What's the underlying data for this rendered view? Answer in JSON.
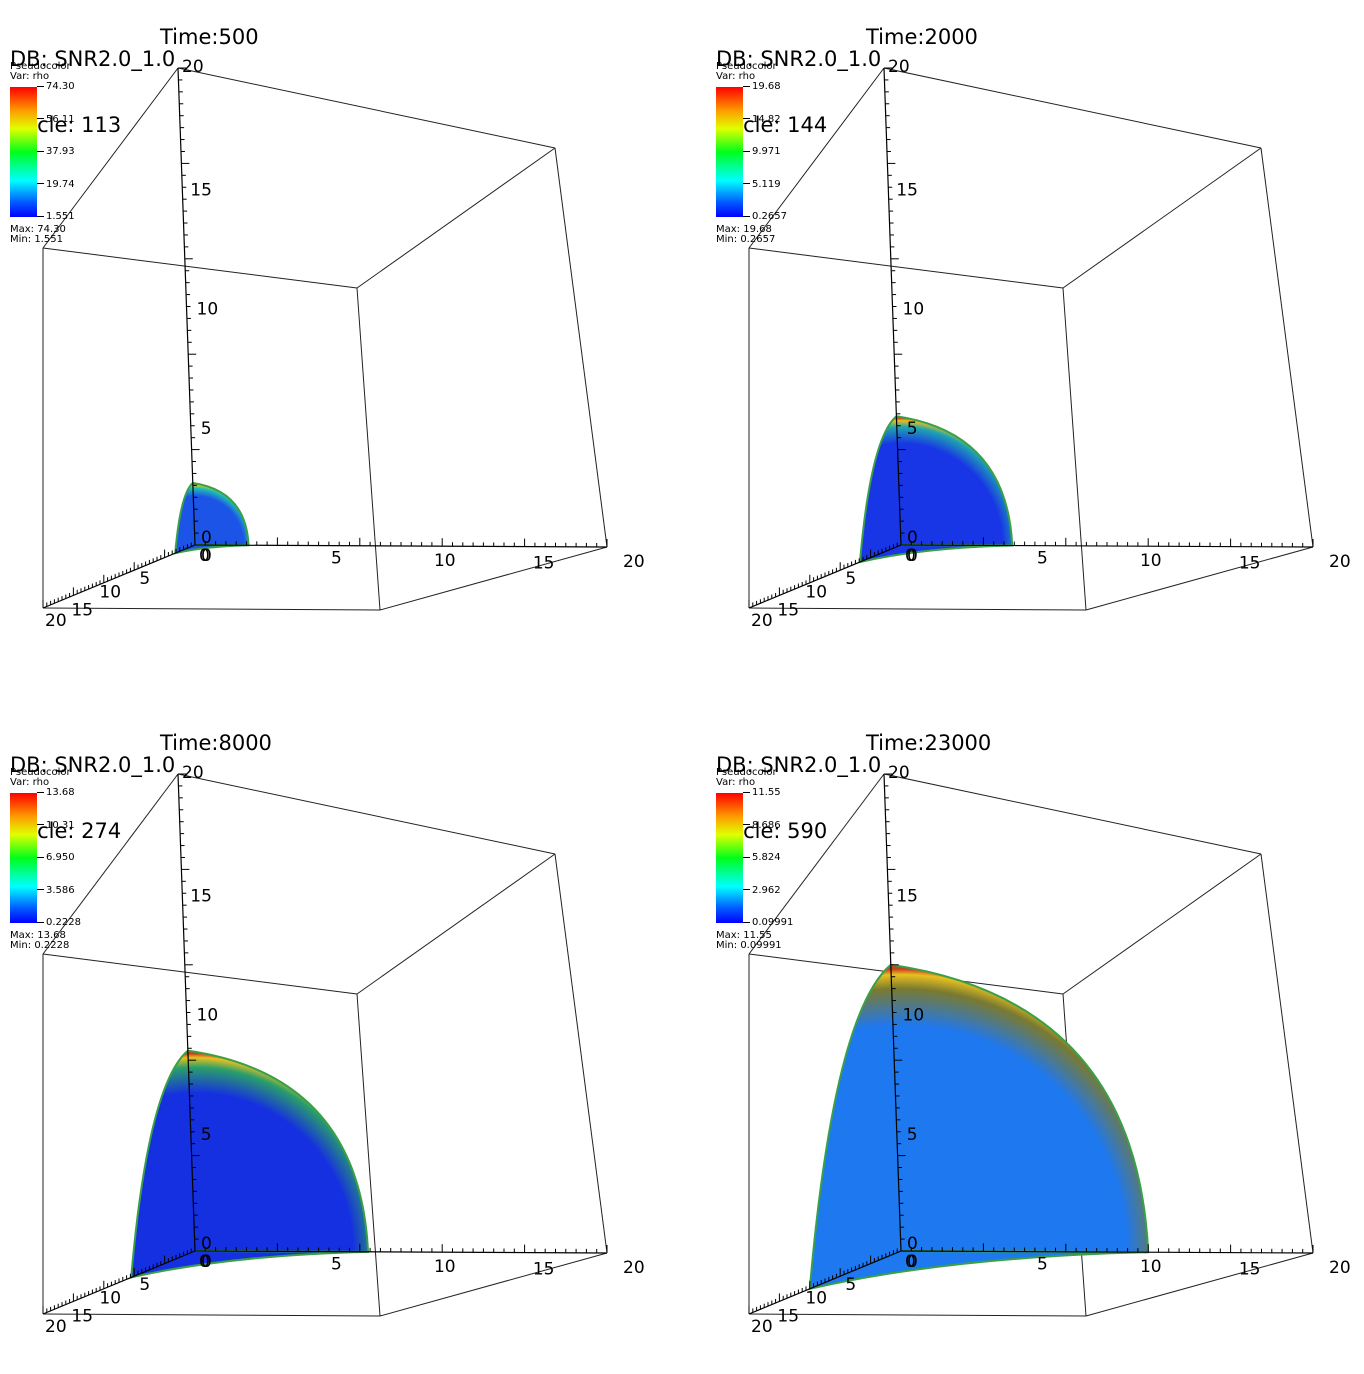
{
  "legend": {
    "title": "Pseudocolor",
    "var": "Var: rho",
    "max_prefix": "Max:",
    "min_prefix": "Min:"
  },
  "axis_labels": {
    "vertical": [
      "20",
      "15",
      "10",
      "5",
      "0"
    ],
    "horizontal": [
      "0",
      "5",
      "10",
      "15",
      "20"
    ],
    "depth": [
      "0",
      "5",
      "10",
      "15",
      "20"
    ]
  },
  "panels": [
    {
      "db": "DB: SNR2.0_1.0",
      "cycle": "Cycle: 113",
      "time": "Time:500",
      "ticks": [
        "74.30",
        "56.11",
        "37.93",
        "19.74",
        "1.551"
      ],
      "max": "74.30",
      "min": "1.551",
      "shell_radius": 2.6,
      "color_inner": "#1c54e8",
      "color_outer": "#20c0b0"
    },
    {
      "db": "DB: SNR2.0_1.0",
      "cycle": "Cycle: 144",
      "time": "Time:2000",
      "ticks": [
        "19.68",
        "14.82",
        "9.971",
        "5.119",
        "0.2657"
      ],
      "max": "19.68",
      "min": "0.2657",
      "shell_radius": 5.4,
      "color_inner": "#1836e6",
      "color_outer": "#1fa4b0"
    },
    {
      "db": "DB: SNR2.0_1.0",
      "cycle": "Cycle: 274",
      "time": "Time:8000",
      "ticks": [
        "13.68",
        "10.31",
        "6.950",
        "3.586",
        "0.2228"
      ],
      "max": "13.68",
      "min": "0.2228",
      "shell_radius": 8.4,
      "color_inner": "#1530e0",
      "color_outer": "#2a9f6a"
    },
    {
      "db": "DB: SNR2.0_1.0",
      "cycle": "Cycle: 590",
      "time": "Time:23000",
      "ticks": [
        "11.55",
        "8.686",
        "5.824",
        "2.962",
        "0.09991"
      ],
      "max": "11.55",
      "min": "0.09991",
      "shell_radius": 12.0,
      "color_inner": "#1e78f0",
      "color_outer": "#7a7a30"
    }
  ]
}
